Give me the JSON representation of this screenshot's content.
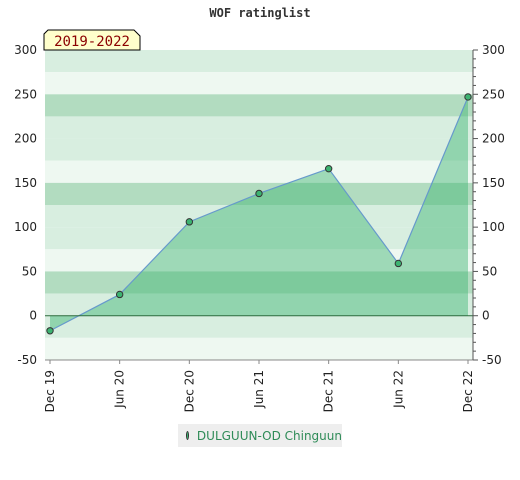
{
  "chart_data": {
    "type": "area",
    "title": "WOF ratinglist",
    "badge": "2019-2022",
    "x_labels": [
      "Dec 19",
      "Jun 20",
      "Dec 20",
      "Jun 21",
      "Dec 21",
      "Jun 22",
      "Dec 22"
    ],
    "y_ticks": [
      -50,
      0,
      50,
      100,
      150,
      200,
      250,
      300
    ],
    "ylim": [
      -50,
      300
    ],
    "series": [
      {
        "name": "DULGUUN-OD Chinguun",
        "x": [
          "Dec 19",
          "Jun 20",
          "Dec 20",
          "Jun 21",
          "Dec 21",
          "Jun 22",
          "Dec 22"
        ],
        "values": [
          -17,
          24,
          106,
          138,
          166,
          59,
          247
        ]
      }
    ],
    "colors": {
      "area_fill": "#3cb371",
      "line": "#6699cc",
      "band_dark": "#b2dcc0",
      "band_light": "#d8eee0",
      "band_lighter": "#eef8f1"
    },
    "legend": {
      "placement": "bottom-center"
    },
    "grid": true
  }
}
